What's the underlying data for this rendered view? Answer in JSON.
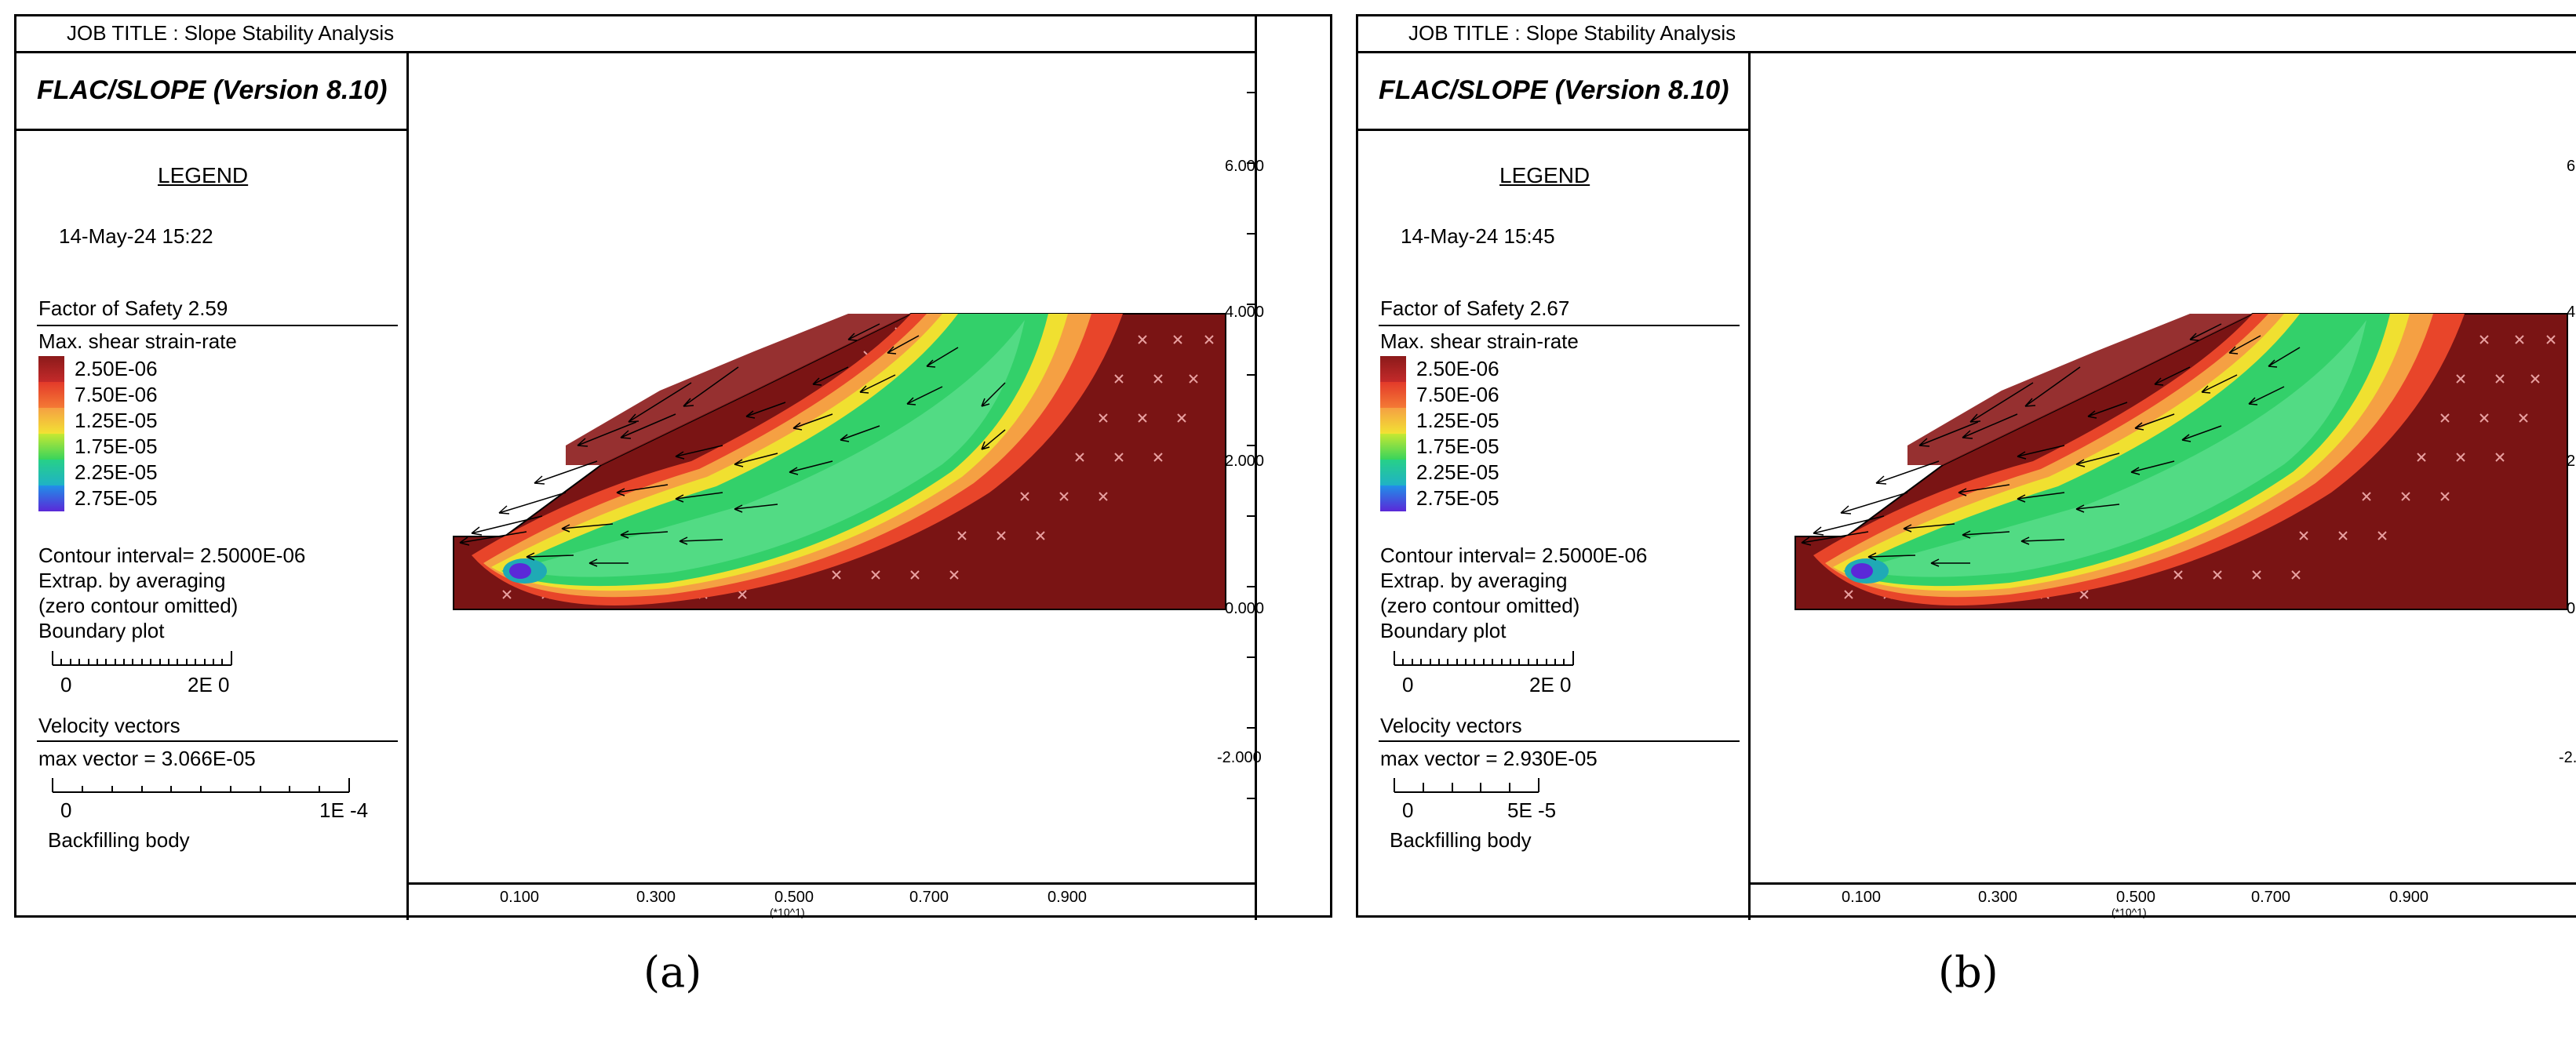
{
  "panels": [
    {
      "job_title": "JOB TITLE : Slope Stability Analysis",
      "program": "FLAC/SLOPE (Version 8.10)",
      "legend_heading": "LEGEND",
      "timestamp": "14-May-24  15:22",
      "factor_of_safety": "Factor of Safety  2.59",
      "shear_title": "Max. shear strain-rate",
      "contour_levels": [
        "2.50E-06",
        "7.50E-06",
        "1.25E-05",
        "1.75E-05",
        "2.25E-05",
        "2.75E-05"
      ],
      "contour_interval": "Contour interval=  2.5000E-06",
      "extrap": "Extrap. by averaging",
      "zero_contour": "(zero contour omitted)",
      "boundary_plot": "Boundary plot",
      "boundary_scale_start": "0",
      "boundary_scale_end": "2E  0",
      "velocity_title": "Velocity vectors",
      "max_vector": "max vector =     3.066E-05",
      "vector_scale_start": "0",
      "vector_scale_end": "1E -4",
      "body_label": "Backfilling body",
      "caption": "(a)"
    },
    {
      "job_title": "JOB TITLE : Slope Stability Analysis",
      "program": "FLAC/SLOPE (Version 8.10)",
      "legend_heading": "LEGEND",
      "timestamp": "14-May-24  15:45",
      "factor_of_safety": "Factor of Safety  2.67",
      "shear_title": "Max. shear strain-rate",
      "contour_levels": [
        "2.50E-06",
        "7.50E-06",
        "1.25E-05",
        "1.75E-05",
        "2.25E-05",
        "2.75E-05"
      ],
      "contour_interval": "Contour interval=  2.5000E-06",
      "extrap": "Extrap. by averaging",
      "zero_contour": "(zero contour omitted)",
      "boundary_plot": "Boundary plot",
      "boundary_scale_start": "0",
      "boundary_scale_end": "2E  0",
      "velocity_title": "Velocity vectors",
      "max_vector": "max vector =     2.930E-05",
      "vector_scale_start": "0",
      "vector_scale_end": "5E -5",
      "body_label": "Backfilling body",
      "caption": "(b)"
    }
  ],
  "axes": {
    "y_ticks": [
      "6.000",
      "4.000",
      "2.000",
      "0.000",
      "-2.000"
    ],
    "x_ticks": [
      "0.100",
      "0.300",
      "0.500",
      "0.700",
      "0.900"
    ],
    "x_multiplier": "(*10^1)"
  },
  "colors": {
    "contour": [
      "#8b1a1a",
      "#e8452a",
      "#f5a043",
      "#f0e030",
      "#33d06a",
      "#1faab5"
    ],
    "body": "#7a1414"
  }
}
